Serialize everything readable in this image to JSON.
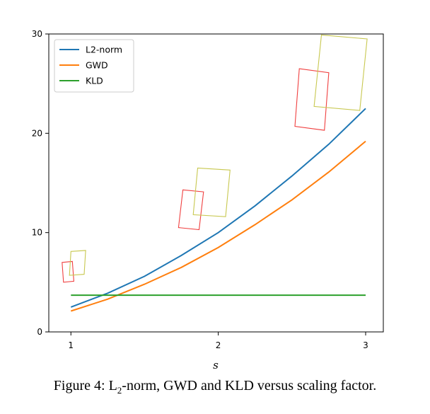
{
  "chart_data": {
    "type": "line",
    "xlabel": "s",
    "xlim": [
      0.85,
      3.12
    ],
    "ylim": [
      0,
      30
    ],
    "xticks": [
      1,
      2,
      3
    ],
    "yticks": [
      0,
      10,
      20,
      30
    ],
    "grid": false,
    "legend_position": "top-left",
    "series": [
      {
        "name": "L2-norm",
        "color": "#1f77b4",
        "x": [
          1.0,
          1.25,
          1.5,
          1.75,
          2.0,
          2.25,
          2.5,
          2.75,
          3.0
        ],
        "y": [
          2.5,
          3.9,
          5.6,
          7.7,
          10.0,
          12.7,
          15.7,
          18.9,
          22.5
        ]
      },
      {
        "name": "GWD",
        "color": "#ff7f0e",
        "x": [
          1.0,
          1.25,
          1.5,
          1.75,
          2.0,
          2.25,
          2.5,
          2.75,
          3.0
        ],
        "y": [
          2.1,
          3.3,
          4.8,
          6.5,
          8.5,
          10.8,
          13.3,
          16.1,
          19.2
        ]
      },
      {
        "name": "KLD",
        "color": "#2ca02c",
        "x": [
          1.0,
          3.0
        ],
        "y": [
          3.7,
          3.7
        ]
      }
    ],
    "boxes": [
      {
        "color": "#f04040",
        "x": [
          0.94,
          1.01,
          1.02,
          0.95
        ],
        "y": [
          7.0,
          7.1,
          5.1,
          5.0
        ]
      },
      {
        "color": "#c8c850",
        "x": [
          1.0,
          1.1,
          1.09,
          0.99
        ],
        "y": [
          8.1,
          8.2,
          5.8,
          5.7
        ]
      },
      {
        "color": "#f04040",
        "x": [
          1.76,
          1.9,
          1.87,
          1.73
        ],
        "y": [
          14.3,
          14.1,
          10.3,
          10.5
        ]
      },
      {
        "color": "#c8c850",
        "x": [
          1.86,
          2.08,
          2.05,
          1.83
        ],
        "y": [
          16.5,
          16.3,
          11.6,
          11.8
        ]
      },
      {
        "color": "#f04040",
        "x": [
          2.55,
          2.75,
          2.72,
          2.52
        ],
        "y": [
          26.5,
          26.1,
          20.3,
          20.7
        ]
      },
      {
        "color": "#c8c850",
        "x": [
          2.7,
          3.01,
          2.96,
          2.65
        ],
        "y": [
          29.9,
          29.5,
          22.3,
          22.7
        ]
      }
    ]
  },
  "caption": {
    "prefix": "Figure 4: L",
    "sub": "2",
    "suffix": "-norm, GWD and KLD versus scaling factor."
  }
}
